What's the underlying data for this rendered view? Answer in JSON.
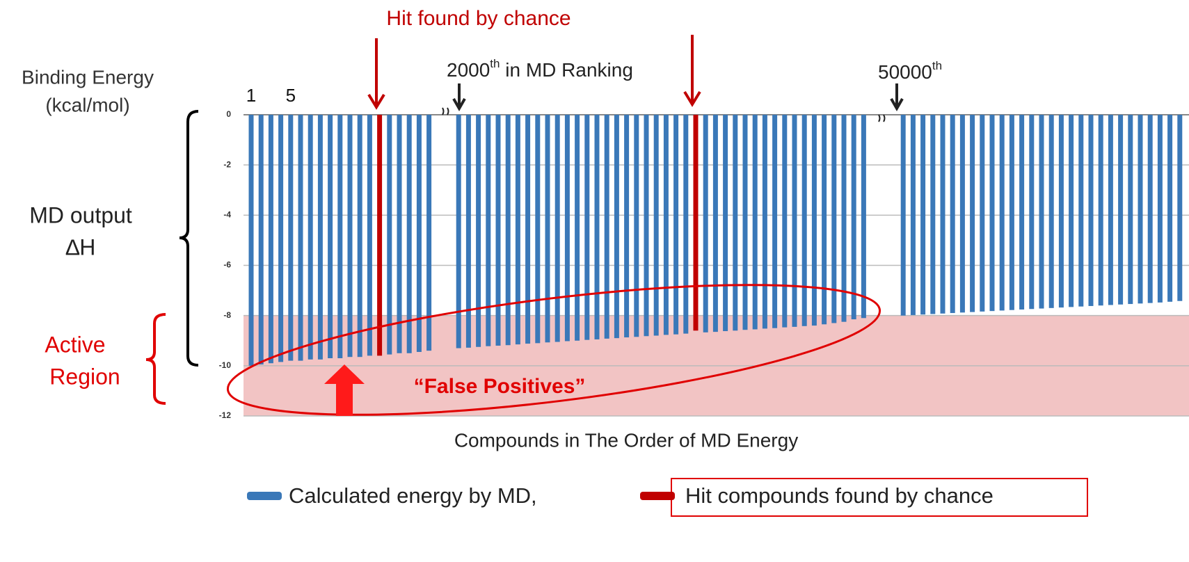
{
  "chart_data": {
    "type": "bar",
    "y_label": [
      "Binding Energy",
      "(kcal/mol)"
    ],
    "x_label": "Compounds  in The Order of MD Energy",
    "categories": [
      "1",
      null,
      null,
      null,
      "5",
      null,
      null,
      null,
      null,
      null,
      null,
      null,
      null,
      null,
      null,
      null,
      null,
      null,
      null,
      null,
      null,
      null,
      null,
      null,
      null,
      null,
      null,
      null,
      null,
      null,
      null,
      null,
      null,
      null,
      null,
      null,
      null,
      null,
      null,
      null,
      null,
      null,
      null,
      null,
      null,
      null,
      null,
      null,
      null,
      null,
      null,
      null,
      null,
      null,
      null,
      null,
      null,
      null,
      null,
      null,
      null,
      null,
      null,
      null,
      null,
      null,
      null,
      null,
      null,
      null,
      null,
      null,
      null,
      null,
      null,
      null,
      null,
      null,
      null,
      null,
      null,
      null,
      null,
      null,
      null,
      null,
      null,
      null,
      null,
      null,
      null,
      null,
      null,
      null,
      null
    ],
    "series": [
      {
        "name": "Calculated energy by MD,",
        "color": "#3a78b8",
        "values": [
          -10.0,
          -9.95,
          -9.9,
          -9.85,
          -9.8,
          -9.8,
          -9.75,
          -9.75,
          -9.7,
          -9.7,
          -9.65,
          -9.65,
          -9.6,
          null,
          -9.55,
          -9.5,
          -9.5,
          -9.45,
          -9.4,
          null,
          null,
          -9.3,
          -9.28,
          -9.25,
          -9.22,
          -9.2,
          -9.18,
          -9.15,
          -9.12,
          -9.1,
          -9.07,
          -9.05,
          -9.02,
          -9.0,
          -8.97,
          -8.95,
          -8.92,
          -8.9,
          -8.87,
          -8.85,
          -8.82,
          -8.8,
          -8.77,
          -8.75,
          -8.72,
          null,
          -8.67,
          -8.65,
          -8.62,
          -8.6,
          -8.57,
          -8.55,
          -8.52,
          -8.5,
          -8.47,
          -8.45,
          -8.42,
          -8.4,
          -8.35,
          -8.3,
          -8.25,
          -8.15,
          -8.1,
          null,
          null,
          null,
          -8.0,
          -7.98,
          -7.96,
          -7.94,
          -7.92,
          -7.9,
          -7.88,
          -7.86,
          -7.84,
          -7.82,
          -7.8,
          -7.78,
          -7.76,
          -7.74,
          -7.72,
          -7.7,
          -7.68,
          -7.66,
          -7.64,
          -7.62,
          -7.6,
          -7.58,
          -7.56,
          -7.54,
          -7.52,
          -7.5,
          -7.48,
          -7.45,
          -7.42
        ]
      },
      {
        "name": "Hit compounds found by chance",
        "color": "#c00000",
        "values": [
          null,
          null,
          null,
          null,
          null,
          null,
          null,
          null,
          null,
          null,
          null,
          null,
          null,
          -9.6,
          null,
          null,
          null,
          null,
          null,
          null,
          null,
          null,
          null,
          null,
          null,
          null,
          null,
          null,
          null,
          null,
          null,
          null,
          null,
          null,
          null,
          null,
          null,
          null,
          null,
          null,
          null,
          null,
          null,
          null,
          null,
          -8.6,
          null,
          null,
          null,
          null,
          null,
          null,
          null,
          null,
          null,
          null,
          null,
          null,
          null,
          null,
          null,
          null,
          null,
          null,
          null,
          null,
          null,
          null,
          null,
          null,
          null,
          null,
          null,
          null,
          null,
          null,
          null,
          null,
          null,
          null,
          null,
          null,
          null,
          null,
          null,
          null,
          null,
          null,
          null,
          null,
          null,
          null,
          null,
          null,
          null
        ]
      }
    ],
    "ylim": [
      -12,
      0
    ],
    "yticks": [
      0,
      -2,
      -4,
      -6,
      -8,
      -10,
      -12
    ],
    "grid": true,
    "highlight_ylim": [
      -12,
      -8
    ],
    "annotations": {
      "hit": "Hit found by chance",
      "rank2000": {
        "num": "2000",
        "sup": "th",
        "rest": " in MD Ranking"
      },
      "rank50000": {
        "num": "50000",
        "sup": "th"
      },
      "md_output": [
        "MD output",
        "∆H"
      ],
      "active": [
        "Active",
        "Region"
      ],
      "false_pos": "“False Positives”"
    }
  }
}
